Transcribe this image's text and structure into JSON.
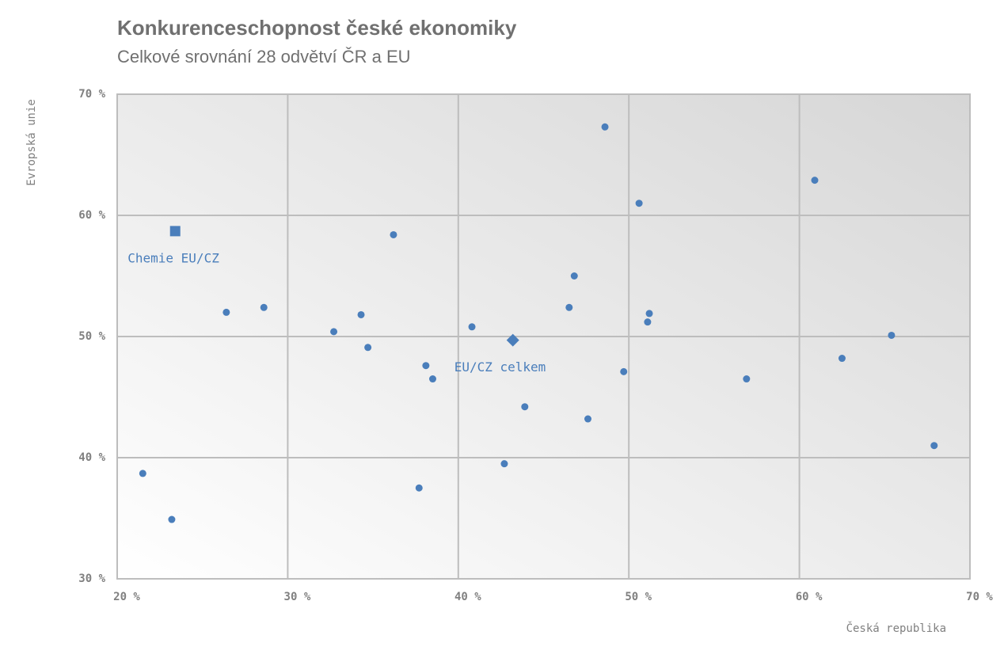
{
  "chart_data": {
    "type": "scatter",
    "title": "Konkurenceschopnost české ekonomiky",
    "subtitle": "Celkové srovnání 28 odvětví ČR a EU",
    "x_label": "Česká republika",
    "y_label": "Evropská unie",
    "xlim": [
      20,
      70
    ],
    "ylim": [
      30,
      70
    ],
    "xticks": [
      {
        "value": 20,
        "label": "20 %"
      },
      {
        "value": 30,
        "label": "30 %"
      },
      {
        "value": 40,
        "label": "40 %"
      },
      {
        "value": 50,
        "label": "50 %"
      },
      {
        "value": 60,
        "label": "60 %"
      },
      {
        "value": 70,
        "label": "70 %"
      }
    ],
    "yticks": [
      {
        "value": 30,
        "label": "30 %"
      },
      {
        "value": 40,
        "label": "40 %"
      },
      {
        "value": 50,
        "label": "50 %"
      },
      {
        "value": 60,
        "label": "60 %"
      },
      {
        "value": 70,
        "label": "70 %"
      }
    ],
    "grid": true,
    "color": "#4a7ebb",
    "series": [
      {
        "color": "#4a7ebb",
        "x": [
          48.6,
          60.9,
          50.6,
          36.2,
          46.8,
          28.6,
          26.4,
          46.5,
          51.2,
          51.1,
          34.3,
          40.8,
          32.7,
          34.7,
          65.4,
          62.5,
          38.1,
          38.5,
          49.7,
          56.9,
          43.9,
          47.6,
          67.9,
          42.7,
          21.5,
          37.7,
          23.2
        ],
        "y": [
          67.3,
          62.9,
          61.0,
          58.4,
          55.0,
          52.4,
          52.0,
          52.4,
          51.9,
          51.2,
          51.8,
          50.8,
          50.4,
          49.1,
          50.1,
          48.2,
          47.6,
          46.5,
          47.1,
          46.5,
          44.2,
          43.2,
          41.0,
          39.5,
          38.7,
          37.5,
          34.9
        ]
      }
    ],
    "highlights": [
      {
        "label": "Chemie EU/CZ",
        "x": 23.4,
        "y": 58.7,
        "marker": "square"
      },
      {
        "label": "EU/CZ celkem",
        "x": 43.2,
        "y": 49.7,
        "marker": "diamond"
      }
    ]
  }
}
